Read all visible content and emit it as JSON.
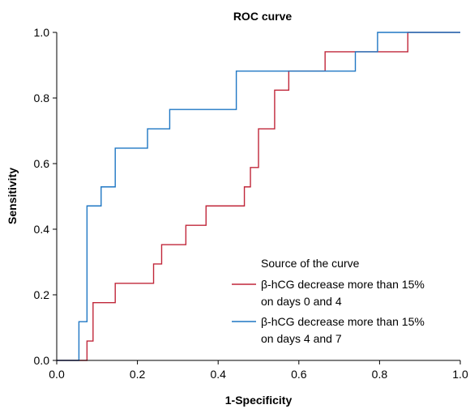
{
  "chart_data": {
    "type": "line",
    "title": "ROC curve",
    "xlabel": "1-Specificity",
    "ylabel": "Sensitivity",
    "xlim": [
      0.0,
      1.0
    ],
    "ylim": [
      0.0,
      1.0
    ],
    "x_ticks": [
      "0.0",
      "0.2",
      "0.4",
      "0.6",
      "0.8",
      "1.0"
    ],
    "y_ticks": [
      "0.0",
      "0.2",
      "0.4",
      "0.6",
      "0.8",
      "1.0"
    ],
    "grid": false,
    "legend": {
      "title": "Source of the curve",
      "placement": "lower-right"
    },
    "series": [
      {
        "name_lines": [
          "β-hCG decrease more than 15%",
          "on days 0 and 4"
        ],
        "color": "#c0273a",
        "points": [
          [
            0.0,
            0.0
          ],
          [
            0.075,
            0.0
          ],
          [
            0.075,
            0.059
          ],
          [
            0.09,
            0.059
          ],
          [
            0.09,
            0.176
          ],
          [
            0.145,
            0.176
          ],
          [
            0.145,
            0.235
          ],
          [
            0.24,
            0.235
          ],
          [
            0.24,
            0.294
          ],
          [
            0.26,
            0.294
          ],
          [
            0.26,
            0.353
          ],
          [
            0.32,
            0.353
          ],
          [
            0.32,
            0.412
          ],
          [
            0.37,
            0.412
          ],
          [
            0.37,
            0.471
          ],
          [
            0.465,
            0.471
          ],
          [
            0.465,
            0.529
          ],
          [
            0.48,
            0.529
          ],
          [
            0.48,
            0.588
          ],
          [
            0.5,
            0.588
          ],
          [
            0.5,
            0.706
          ],
          [
            0.54,
            0.706
          ],
          [
            0.54,
            0.824
          ],
          [
            0.575,
            0.824
          ],
          [
            0.575,
            0.882
          ],
          [
            0.665,
            0.882
          ],
          [
            0.665,
            0.941
          ],
          [
            0.87,
            0.941
          ],
          [
            0.87,
            1.0
          ],
          [
            1.0,
            1.0
          ]
        ]
      },
      {
        "name_lines": [
          "β-hCG decrease more than 15%",
          "on days 4 and 7"
        ],
        "color": "#1f77c4",
        "points": [
          [
            0.0,
            0.0
          ],
          [
            0.055,
            0.0
          ],
          [
            0.055,
            0.118
          ],
          [
            0.075,
            0.118
          ],
          [
            0.075,
            0.471
          ],
          [
            0.11,
            0.471
          ],
          [
            0.11,
            0.529
          ],
          [
            0.145,
            0.529
          ],
          [
            0.145,
            0.647
          ],
          [
            0.225,
            0.647
          ],
          [
            0.225,
            0.706
          ],
          [
            0.28,
            0.706
          ],
          [
            0.28,
            0.765
          ],
          [
            0.445,
            0.765
          ],
          [
            0.445,
            0.882
          ],
          [
            0.74,
            0.882
          ],
          [
            0.74,
            0.941
          ],
          [
            0.795,
            0.941
          ],
          [
            0.795,
            1.0
          ],
          [
            1.0,
            1.0
          ]
        ]
      }
    ]
  }
}
